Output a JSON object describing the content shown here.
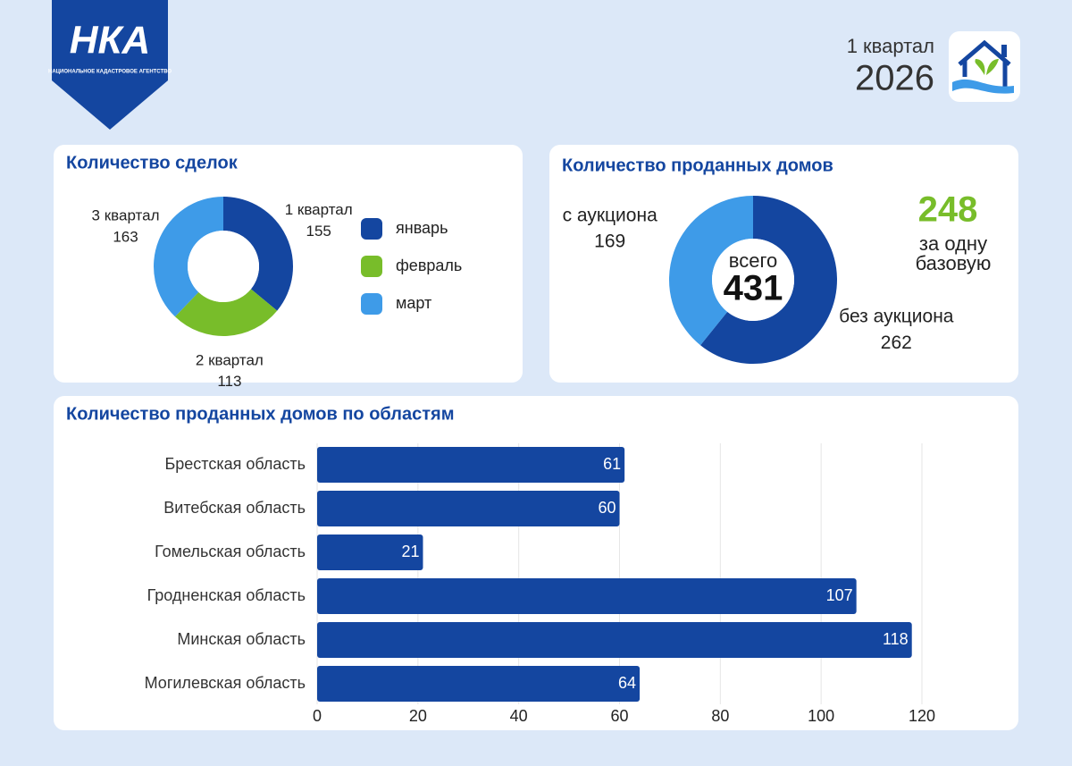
{
  "header": {
    "logo_text": "НКА",
    "logo_subtitle": "НАЦИОНАЛЬНОЕ КАДАСТРОВОЕ АГЕНТСТВО",
    "period": "1 квартал",
    "year": "2026"
  },
  "chart_data": [
    {
      "type": "donut",
      "title": "Количество сделок",
      "categories": [
        "1 квартал",
        "2 квартал",
        "3 квартал"
      ],
      "values": [
        155,
        113,
        163
      ],
      "colors": [
        "#1446a0",
        "#78bd2a",
        "#3e9be8"
      ],
      "legend": [
        "январь",
        "февраль",
        "март"
      ]
    },
    {
      "type": "donut",
      "title": "Количество проданных домов",
      "categories": [
        "без аукциона",
        "с аукциона"
      ],
      "values": [
        262,
        169
      ],
      "colors": [
        "#1446a0",
        "#3e9be8"
      ],
      "center_label": "всего",
      "total": 431,
      "annotation": {
        "value": 248,
        "lines": [
          "за одну",
          "базовую"
        ]
      }
    },
    {
      "type": "barh",
      "title": "Количество проданных домов по областям",
      "categories": [
        "Брестская область",
        "Витебская область",
        "Гомельская область",
        "Гродненская область",
        "Минская область",
        "Могилевская область"
      ],
      "values": [
        61,
        60,
        21,
        107,
        118,
        64
      ],
      "color": "#1446a0",
      "xlim": [
        0,
        120
      ],
      "xticks": [
        0,
        20,
        40,
        60,
        80,
        100,
        120
      ],
      "grid": true
    }
  ]
}
